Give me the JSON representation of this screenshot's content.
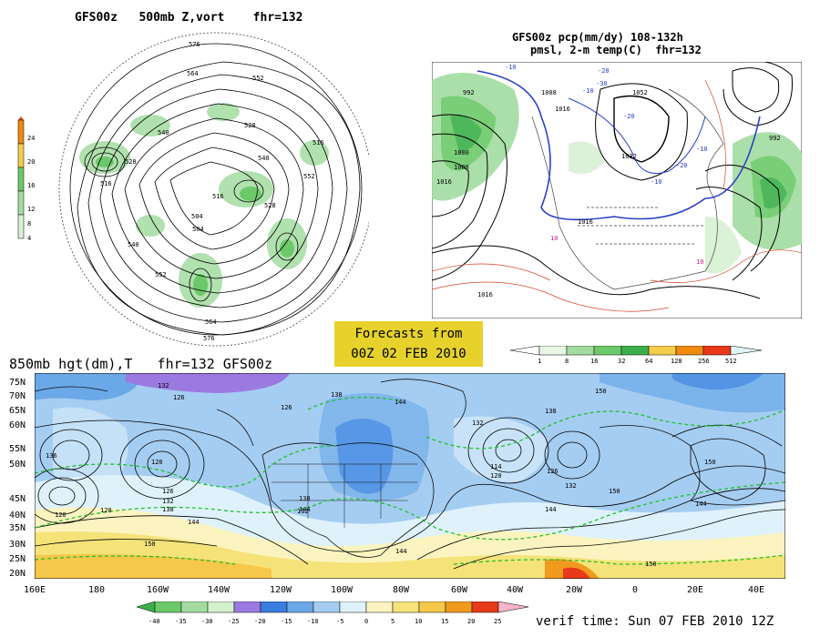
{
  "top_left": {
    "title": "GFS00z   500mb Z,vort    fhr=132",
    "colorbar": [
      "24",
      "20",
      "16",
      "12",
      "8",
      "4"
    ],
    "colors": [
      "#f08a10",
      "#f5cd4a",
      "#6cc96a",
      "#a3dca0",
      "#d8f0d4"
    ],
    "contour_labels": [
      "576",
      "564",
      "552",
      "540",
      "528",
      "516",
      "504",
      "576",
      "564",
      "552",
      "540",
      "528",
      "516",
      "552",
      "540",
      "528",
      "516",
      "504"
    ]
  },
  "top_right": {
    "title1": "GFS00z pcp(mm/dy) 108-132h",
    "title2": "pmsl, 2-m temp(C)  fhr=132",
    "pressure_labels": [
      "992",
      "1008",
      "1016",
      "1000",
      "1008",
      "1016",
      "1032",
      "1052",
      "1016",
      "1016",
      "992"
    ],
    "temp_labels": [
      "-10",
      "-20",
      "-30",
      "-10",
      "-20",
      "-10",
      "-20",
      "-10",
      "10",
      "10"
    ],
    "colorbar": [
      "1",
      "8",
      "16",
      "32",
      "64",
      "128",
      "256",
      "512"
    ],
    "colorbar_colors": [
      "#e8f6e4",
      "#a3dca0",
      "#6cc96a",
      "#3bb04a",
      "#f5cd4a",
      "#f08a10",
      "#e8381a",
      "#dff5f8"
    ]
  },
  "forecast_box": {
    "line1": "Forecasts from",
    "line2": "00Z 02 FEB 2010"
  },
  "bottom": {
    "title": "850mb hgt(dm),T   fhr=132 GFS00z",
    "lat_labels": [
      "75N",
      "70N",
      "65N",
      "60N",
      "55N",
      "50N",
      "45N",
      "40N",
      "35N",
      "30N",
      "25N",
      "20N"
    ],
    "lon_labels": [
      "160E",
      "180",
      "160W",
      "140W",
      "120W",
      "100W",
      "80W",
      "60W",
      "40W",
      "20W",
      "0",
      "20E",
      "40E"
    ],
    "height_labels": [
      "132",
      "126",
      "138",
      "126",
      "120",
      "136",
      "120",
      "120",
      "126",
      "132",
      "138",
      "144",
      "150",
      "138",
      "144",
      "132",
      "144",
      "132",
      "120",
      "114",
      "126",
      "132",
      "144",
      "150",
      "138",
      "144",
      "150",
      "144",
      "150",
      "150"
    ],
    "colorbar": [
      "-40",
      "-35",
      "-30",
      "-25",
      "-20",
      "-15",
      "-10",
      "-5",
      "0",
      "5",
      "10",
      "15",
      "20",
      "25"
    ],
    "colorbar_colors": [
      "#3bb04a",
      "#6cc96a",
      "#a3dca0",
      "#d4f0cc",
      "#9a7ae0",
      "#3a7ee0",
      "#6aa8e8",
      "#a5cdf2",
      "#dff2fb",
      "#fbf4c0",
      "#f5e37a",
      "#f5c74a",
      "#f09a1e",
      "#e83a1a"
    ]
  },
  "verif": "verif time: Sun 07 FEB 2010 12Z"
}
